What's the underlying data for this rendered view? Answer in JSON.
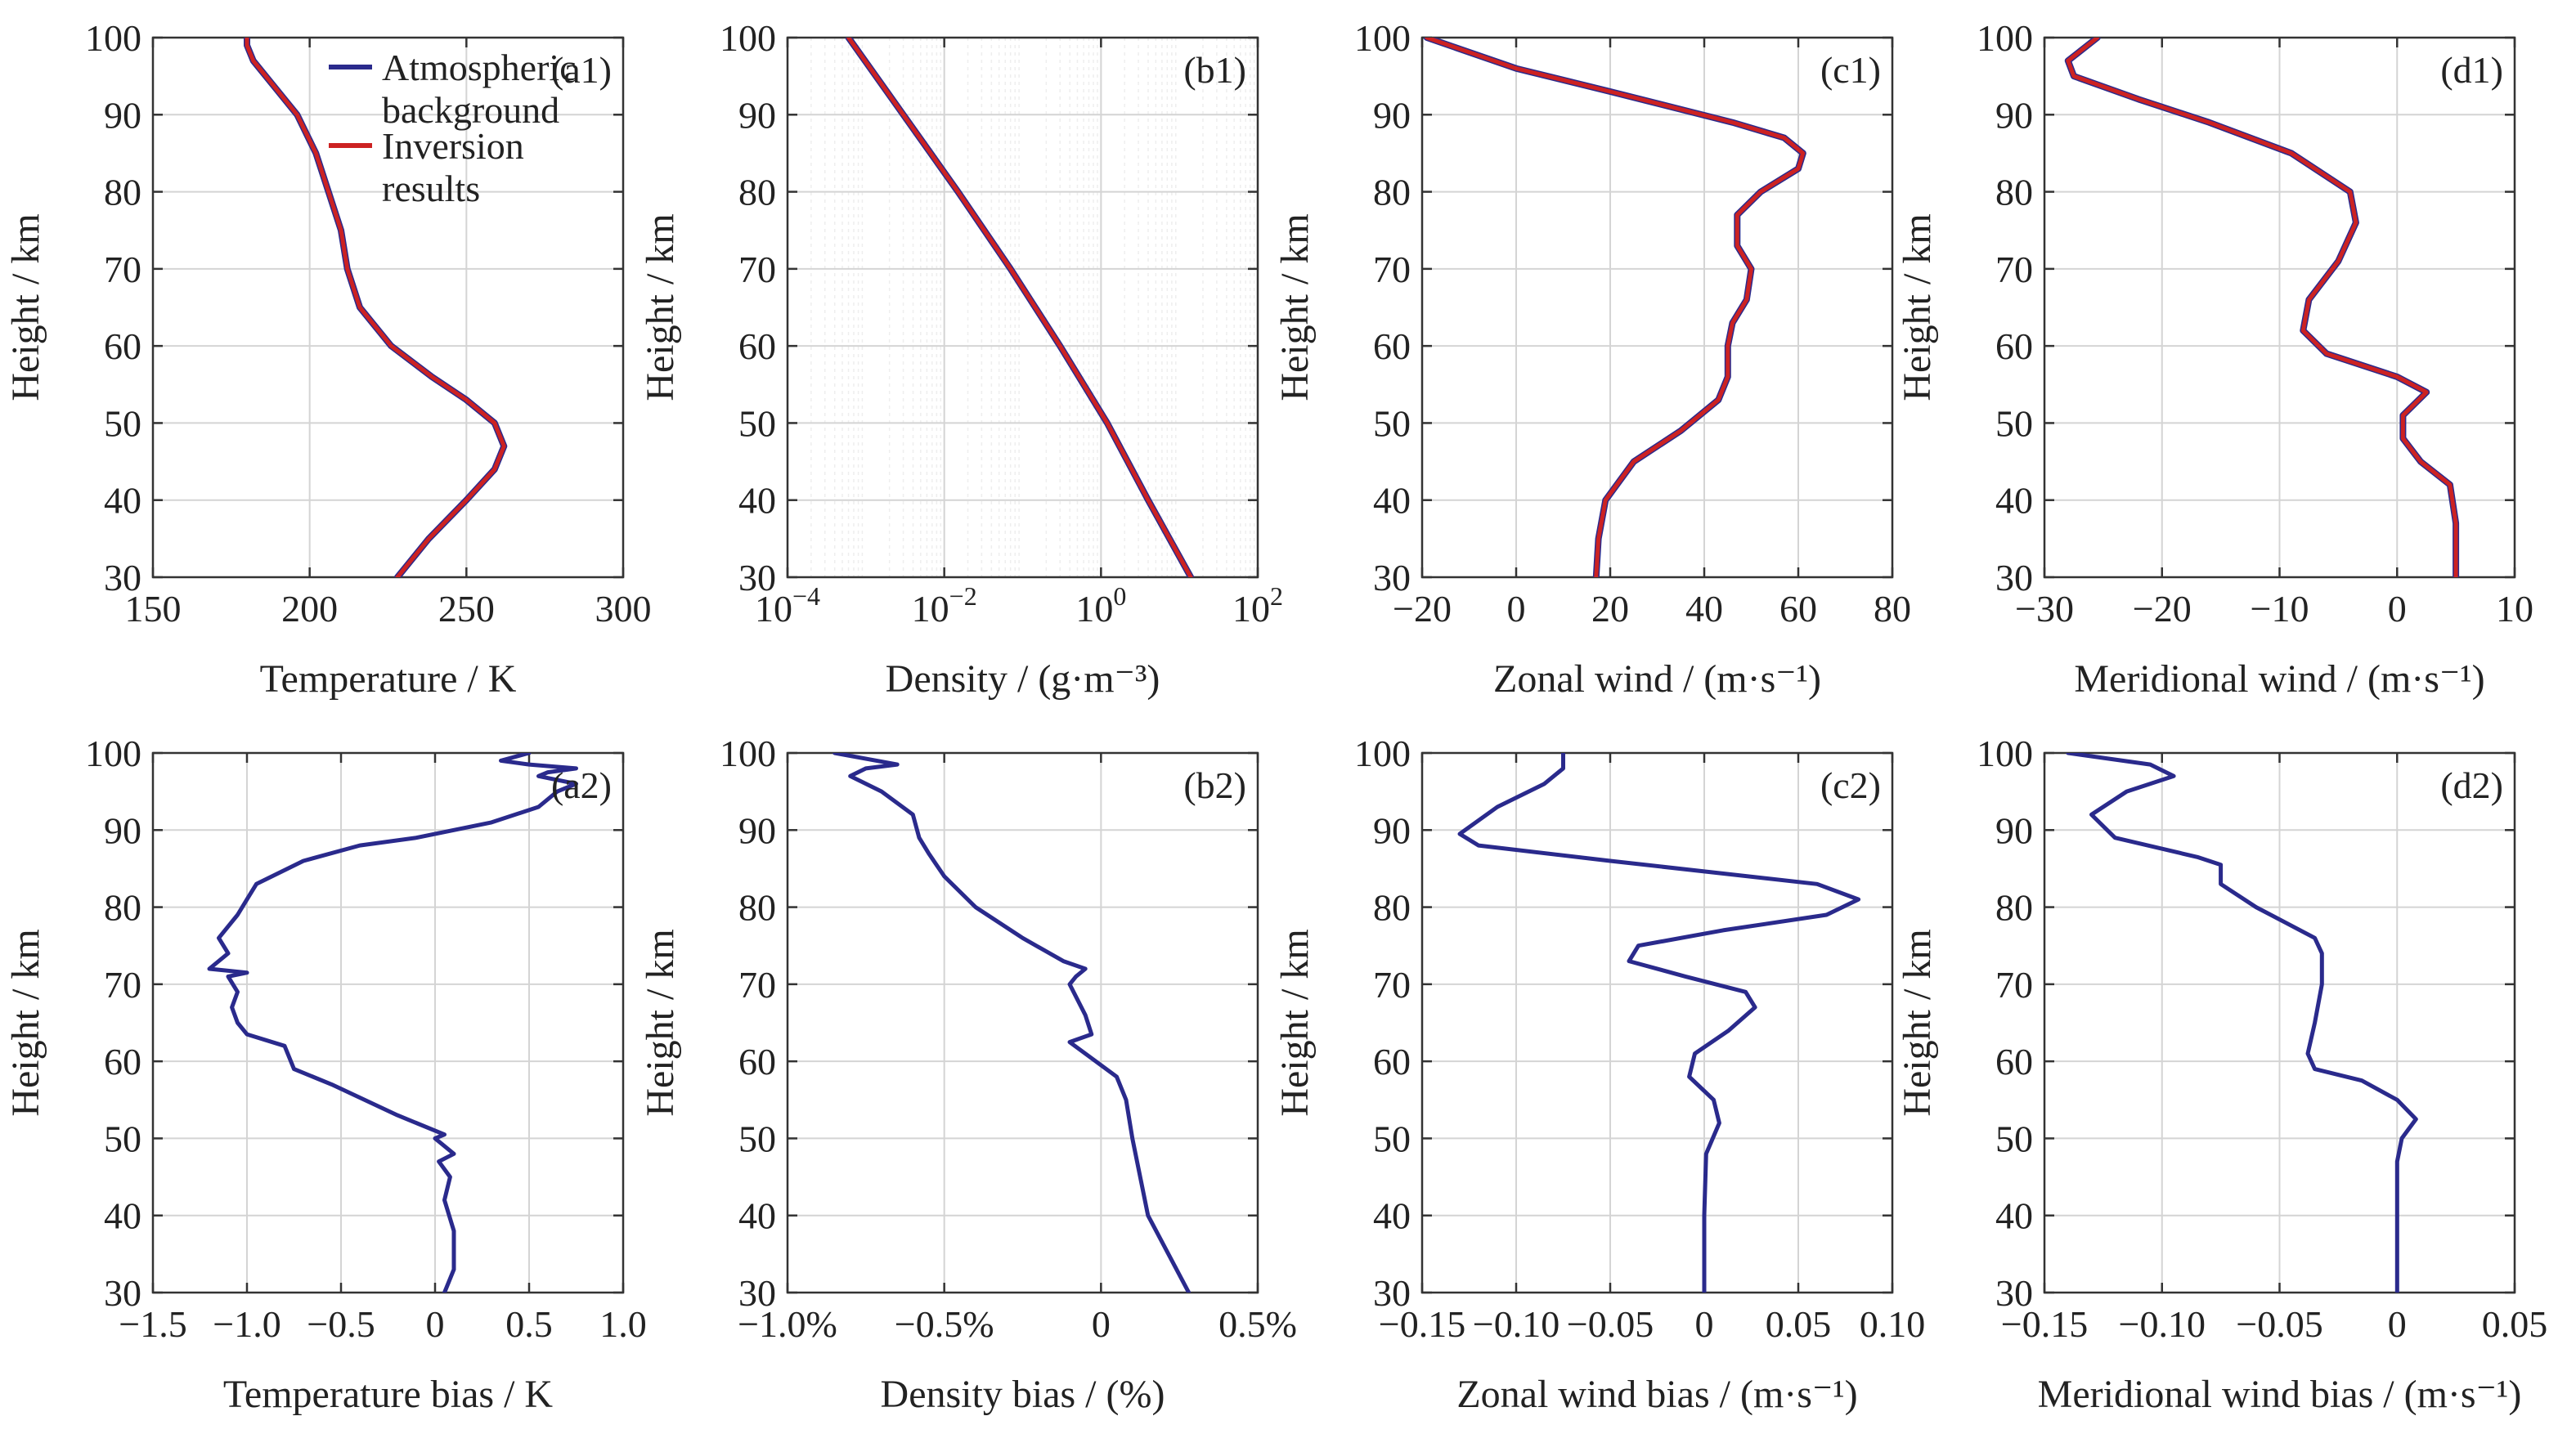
{
  "colors": {
    "background_series": "#2a2a8c",
    "inversion_series": "#cc2222",
    "grid": "#d4d4d4",
    "axis": "#333333"
  },
  "legend": {
    "location": "top-right of panel (a1)",
    "entries": [
      {
        "label_lines": [
          "Atmospheric",
          "background"
        ],
        "color": "#2a2a8c"
      },
      {
        "label_lines": [
          "Inversion",
          "results"
        ],
        "color": "#cc2222"
      }
    ]
  },
  "chart_data": [
    {
      "id": "a1",
      "tag": "(a1)",
      "type": "line",
      "xlabel": "Temperature / K",
      "ylabel": "Height / km",
      "xlim": [
        150,
        300
      ],
      "ylim": [
        30,
        100
      ],
      "grid": true,
      "xticks": [
        150,
        200,
        250,
        300
      ],
      "xtick_labels": [
        "150",
        "200",
        "250",
        "300"
      ],
      "yticks": [
        30,
        40,
        50,
        60,
        70,
        80,
        90,
        100
      ],
      "ytick_labels": [
        "30",
        "40",
        "50",
        "60",
        "70",
        "80",
        "90",
        "100"
      ],
      "series": [
        {
          "name": "Atmospheric background",
          "color": "#2a2a8c",
          "x": [
            228,
            238,
            250,
            259,
            262,
            259,
            250,
            239,
            226,
            216,
            212,
            210,
            206,
            202,
            196,
            188,
            182,
            180,
            180
          ],
          "y": [
            30,
            35,
            40,
            44,
            47,
            50,
            53,
            56,
            60,
            65,
            70,
            75,
            80,
            85,
            90,
            94,
            97,
            99,
            100
          ]
        },
        {
          "name": "Inversion results",
          "color": "#cc2222",
          "x": [
            228,
            238,
            250,
            259,
            262,
            259,
            250,
            239,
            226,
            216,
            212,
            210,
            206,
            202,
            196,
            188,
            182,
            180,
            180
          ],
          "y": [
            30,
            35,
            40,
            44,
            47,
            50,
            53,
            56,
            60,
            65,
            70,
            75,
            80,
            85,
            90,
            94,
            97,
            99,
            100
          ]
        }
      ]
    },
    {
      "id": "b1",
      "tag": "(b1)",
      "type": "line",
      "xlabel": "Density / (g·m⁻³)",
      "ylabel": "Height / km",
      "xscale": "log",
      "xlim": [
        0.0001,
        100
      ],
      "ylim": [
        30,
        100
      ],
      "grid": true,
      "xticks": [
        0.0001,
        0.01,
        1,
        100
      ],
      "xtick_labels": [
        {
          "base": "10",
          "exp": "−4"
        },
        {
          "base": "10",
          "exp": "−2"
        },
        {
          "base": "10",
          "exp": "0"
        },
        {
          "base": "10",
          "exp": "2"
        }
      ],
      "yticks": [
        30,
        40,
        50,
        60,
        70,
        80,
        90,
        100
      ],
      "ytick_labels": [
        "30",
        "40",
        "50",
        "60",
        "70",
        "80",
        "90",
        "100"
      ],
      "series": [
        {
          "name": "Atmospheric background",
          "color": "#2a2a8c",
          "x": [
            14,
            4,
            1.2,
            0.3,
            0.07,
            0.015,
            0.003,
            0.0006
          ],
          "y": [
            30,
            40,
            50,
            60,
            70,
            80,
            90,
            100
          ]
        },
        {
          "name": "Inversion results",
          "color": "#cc2222",
          "x": [
            14,
            4,
            1.2,
            0.3,
            0.07,
            0.015,
            0.003,
            0.0006
          ],
          "y": [
            30,
            40,
            50,
            60,
            70,
            80,
            90,
            100
          ]
        }
      ]
    },
    {
      "id": "c1",
      "tag": "(c1)",
      "type": "line",
      "xlabel": "Zonal wind / (m·s⁻¹)",
      "ylabel": "Height / km",
      "xlim": [
        -20,
        80
      ],
      "ylim": [
        30,
        100
      ],
      "grid": true,
      "xticks": [
        -20,
        0,
        20,
        40,
        60,
        80
      ],
      "xtick_labels": [
        "−20",
        "0",
        "20",
        "40",
        "60",
        "80"
      ],
      "yticks": [
        30,
        40,
        50,
        60,
        70,
        80,
        90,
        100
      ],
      "ytick_labels": [
        "30",
        "40",
        "50",
        "60",
        "70",
        "80",
        "90",
        "100"
      ],
      "series": [
        {
          "name": "Atmospheric background",
          "color": "#2a2a8c",
          "x": [
            17,
            17.5,
            19,
            25,
            35,
            43,
            45,
            45,
            46,
            49,
            50,
            47,
            47,
            52,
            60,
            61,
            57,
            46,
            20,
            0,
            -19
          ],
          "y": [
            30,
            35,
            40,
            45,
            49,
            53,
            56,
            60,
            63,
            66,
            70,
            73,
            77,
            80,
            83,
            85,
            87,
            89,
            93,
            96,
            100
          ]
        },
        {
          "name": "Inversion results",
          "color": "#cc2222",
          "x": [
            17,
            17.5,
            19,
            25,
            35,
            43,
            45,
            45,
            46,
            49,
            50,
            47,
            47,
            52,
            60,
            61,
            57,
            46,
            20,
            0,
            -19
          ],
          "y": [
            30,
            35,
            40,
            45,
            49,
            53,
            56,
            60,
            63,
            66,
            70,
            73,
            77,
            80,
            83,
            85,
            87,
            89,
            93,
            96,
            100
          ]
        }
      ]
    },
    {
      "id": "d1",
      "tag": "(d1)",
      "type": "line",
      "xlabel": "Meridional wind / (m·s⁻¹)",
      "ylabel": "Height / km",
      "xlim": [
        -30,
        10
      ],
      "ylim": [
        30,
        100
      ],
      "grid": true,
      "xticks": [
        -30,
        -20,
        -10,
        0,
        10
      ],
      "xtick_labels": [
        "−30",
        "−20",
        "−10",
        "0",
        "10"
      ],
      "yticks": [
        30,
        40,
        50,
        60,
        70,
        80,
        90,
        100
      ],
      "ytick_labels": [
        "30",
        "40",
        "50",
        "60",
        "70",
        "80",
        "90",
        "100"
      ],
      "series": [
        {
          "name": "Atmospheric background",
          "color": "#2a2a8c",
          "x": [
            5,
            5,
            4.5,
            2,
            0.5,
            0.5,
            2.5,
            0,
            -6,
            -8,
            -7.5,
            -5,
            -3.5,
            -4,
            -9,
            -16,
            -22,
            -27.5,
            -28,
            -25.5
          ],
          "y": [
            30,
            37,
            42,
            45,
            48,
            51,
            54,
            56,
            59,
            62,
            66,
            71,
            76,
            80,
            85,
            89,
            92,
            95,
            97,
            100
          ]
        },
        {
          "name": "Inversion results",
          "color": "#cc2222",
          "x": [
            5,
            5,
            4.5,
            2,
            0.5,
            0.5,
            2.5,
            0,
            -6,
            -8,
            -7.5,
            -5,
            -3.5,
            -4,
            -9,
            -16,
            -22,
            -27.5,
            -28,
            -25.5
          ],
          "y": [
            30,
            37,
            42,
            45,
            48,
            51,
            54,
            56,
            59,
            62,
            66,
            71,
            76,
            80,
            85,
            89,
            92,
            95,
            97,
            100
          ]
        }
      ]
    },
    {
      "id": "a2",
      "tag": "(a2)",
      "type": "line",
      "xlabel": "Temperature bias / K",
      "ylabel": "Height / km",
      "xlim": [
        -1.5,
        1.0
      ],
      "ylim": [
        30,
        100
      ],
      "grid": true,
      "xticks": [
        -1.5,
        -1.0,
        -0.5,
        0,
        0.5,
        1.0
      ],
      "xtick_labels": [
        "−1.5",
        "−1.0",
        "−0.5",
        "0",
        "0.5",
        "1.0"
      ],
      "yticks": [
        30,
        40,
        50,
        60,
        70,
        80,
        90,
        100
      ],
      "ytick_labels": [
        "30",
        "40",
        "50",
        "60",
        "70",
        "80",
        "90",
        "100"
      ],
      "series": [
        {
          "color": "#2a2a8c",
          "x": [
            0.05,
            0.1,
            0.1,
            0.05,
            0.08,
            0.02,
            0.1,
            0.0,
            0.05,
            -0.2,
            -0.55,
            -0.75,
            -0.8,
            -1.0,
            -1.05,
            -1.08,
            -1.05,
            -1.1,
            -1.0,
            -1.2,
            -1.1,
            -1.15,
            -1.05,
            -1.0,
            -0.95,
            -0.7,
            -0.4,
            -0.1,
            0.3,
            0.55,
            0.65,
            0.75,
            0.55,
            0.6,
            0.75,
            0.5,
            0.35,
            0.5
          ],
          "y": [
            30,
            33,
            38,
            42,
            45,
            47,
            48,
            50,
            50.5,
            53,
            57,
            59,
            62,
            63.5,
            65,
            67,
            69,
            71,
            71.5,
            72,
            74,
            76,
            79,
            81,
            83,
            86,
            88,
            89,
            91,
            93,
            95,
            96,
            97,
            97.5,
            98,
            98.5,
            99,
            100
          ]
        }
      ]
    },
    {
      "id": "b2",
      "tag": "(b2)",
      "type": "line",
      "xlabel": "Density bias / (%)",
      "ylabel": "Height / km",
      "xlim": [
        -1.0,
        0.5
      ],
      "ylim": [
        30,
        100
      ],
      "grid": true,
      "xticks": [
        -1.0,
        -0.5,
        0,
        0.5
      ],
      "xtick_labels": [
        "−1.0%",
        "−0.5%",
        "0",
        "0.5%"
      ],
      "yticks": [
        30,
        40,
        50,
        60,
        70,
        80,
        90,
        100
      ],
      "ytick_labels": [
        "30",
        "40",
        "50",
        "60",
        "70",
        "80",
        "90",
        "100"
      ],
      "series": [
        {
          "color": "#2a2a8c",
          "x": [
            0.28,
            0.15,
            0.1,
            0.08,
            0.05,
            -0.05,
            -0.1,
            -0.03,
            -0.05,
            -0.1,
            -0.08,
            -0.05,
            -0.12,
            -0.25,
            -0.4,
            -0.5,
            -0.55,
            -0.58,
            -0.6,
            -0.7,
            -0.8,
            -0.75,
            -0.65,
            -0.85
          ],
          "y": [
            30,
            40,
            50,
            55,
            58,
            61,
            62.5,
            63.5,
            66,
            70,
            71,
            72,
            73,
            76,
            80,
            84,
            87,
            89,
            92,
            95,
            97,
            98,
            98.5,
            100
          ]
        }
      ]
    },
    {
      "id": "c2",
      "tag": "(c2)",
      "type": "line",
      "xlabel": "Zonal wind bias / (m·s⁻¹)",
      "ylabel": "Height / km",
      "xlim": [
        -0.15,
        0.1
      ],
      "ylim": [
        30,
        100
      ],
      "grid": true,
      "xticks": [
        -0.15,
        -0.1,
        -0.05,
        0,
        0.05,
        0.1
      ],
      "xtick_labels": [
        "−0.15",
        "−0.10",
        "−0.05",
        "0",
        "0.05",
        "0.10"
      ],
      "yticks": [
        30,
        40,
        50,
        60,
        70,
        80,
        90,
        100
      ],
      "ytick_labels": [
        "30",
        "40",
        "50",
        "60",
        "70",
        "80",
        "90",
        "100"
      ],
      "series": [
        {
          "color": "#2a2a8c",
          "x": [
            0,
            0,
            0.001,
            0.008,
            0.005,
            -0.008,
            -0.005,
            0.013,
            0.027,
            0.022,
            -0.01,
            -0.04,
            -0.035,
            0.01,
            0.065,
            0.082,
            0.06,
            -0.05,
            -0.12,
            -0.13,
            -0.11,
            -0.085,
            -0.075,
            -0.075
          ],
          "y": [
            30,
            40,
            48,
            52,
            55,
            58,
            61,
            64,
            67,
            69,
            71,
            73,
            75,
            77,
            79,
            81,
            83,
            86,
            88,
            89.5,
            93,
            96,
            98,
            100
          ]
        }
      ]
    },
    {
      "id": "d2",
      "tag": "(d2)",
      "type": "line",
      "xlabel": "Meridional wind bias / (m·s⁻¹)",
      "ylabel": "Height / km",
      "xlim": [
        -0.15,
        0.05
      ],
      "ylim": [
        30,
        100
      ],
      "grid": true,
      "xticks": [
        -0.15,
        -0.1,
        -0.05,
        0,
        0.05
      ],
      "xtick_labels": [
        "−0.15",
        "−0.10",
        "−0.05",
        "0",
        "0.05"
      ],
      "yticks": [
        30,
        40,
        50,
        60,
        70,
        80,
        90,
        100
      ],
      "ytick_labels": [
        "30",
        "40",
        "50",
        "60",
        "70",
        "80",
        "90",
        "100"
      ],
      "series": [
        {
          "color": "#2a2a8c",
          "x": [
            0,
            0,
            0,
            0.002,
            0.008,
            0,
            -0.015,
            -0.035,
            -0.038,
            -0.035,
            -0.032,
            -0.032,
            -0.035,
            -0.06,
            -0.075,
            -0.075,
            -0.085,
            -0.12,
            -0.13,
            -0.115,
            -0.095,
            -0.105,
            -0.14
          ],
          "y": [
            30,
            40,
            47,
            50,
            52.5,
            55,
            57.5,
            59,
            61,
            65,
            70,
            74,
            76,
            80,
            83,
            85.5,
            86.5,
            89,
            92,
            95,
            97,
            98.5,
            100
          ]
        }
      ]
    }
  ]
}
